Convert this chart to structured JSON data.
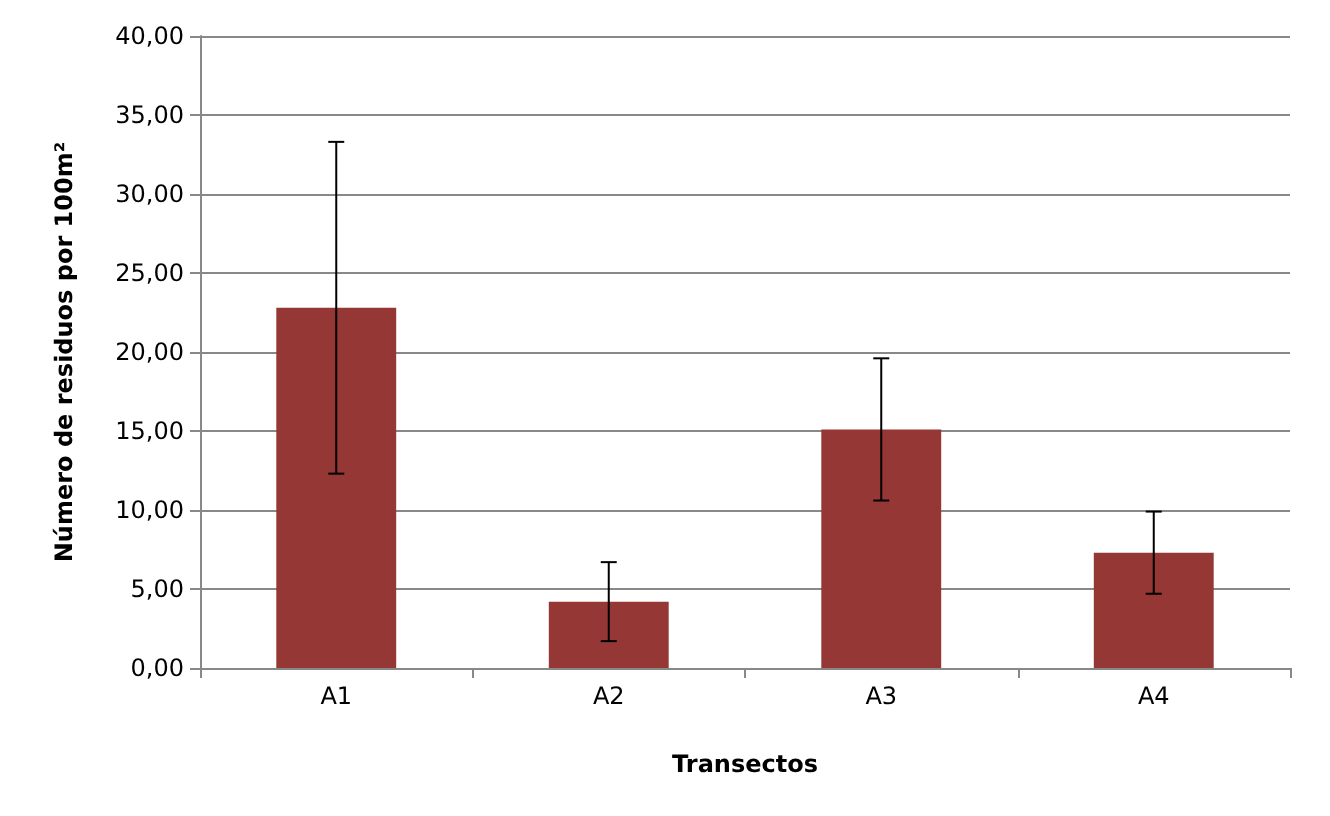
{
  "chart_data": {
    "type": "bar",
    "xlabel": "Transectos",
    "ylabel": "Número de residuos por 100m²",
    "categories": [
      "A1",
      "A2",
      "A3",
      "A4"
    ],
    "values": [
      22.8,
      4.2,
      15.1,
      7.3
    ],
    "errors": [
      10.5,
      2.5,
      4.5,
      2.6
    ],
    "color": "#953735",
    "ylim": [
      0,
      40
    ],
    "yticks": [
      {
        "value": 0,
        "label": "0,00"
      },
      {
        "value": 5,
        "label": "5,00"
      },
      {
        "value": 10,
        "label": "10,00"
      },
      {
        "value": 15,
        "label": "15,00"
      },
      {
        "value": 20,
        "label": "20,00"
      },
      {
        "value": 25,
        "label": "25,00"
      },
      {
        "value": 30,
        "label": "30,00"
      },
      {
        "value": 35,
        "label": "35,00"
      },
      {
        "value": 40,
        "label": "40,00"
      }
    ],
    "grid": "y"
  }
}
